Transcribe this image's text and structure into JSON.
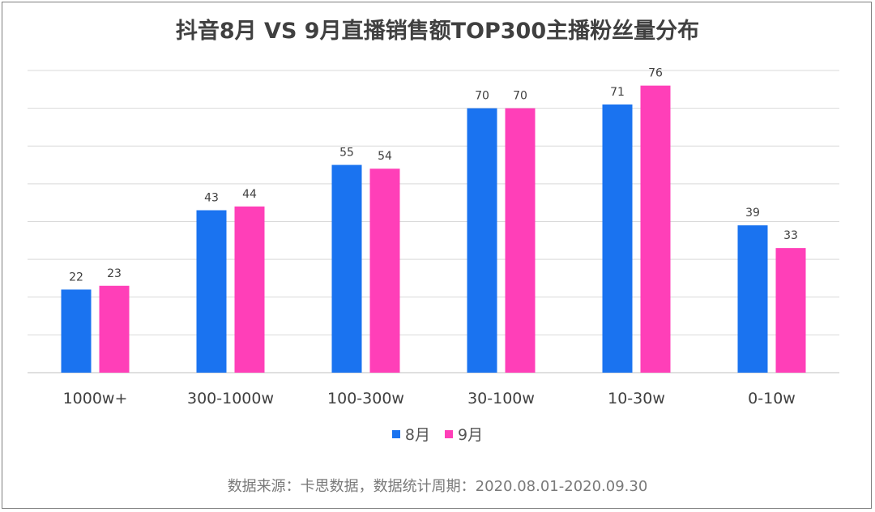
{
  "chart_data": {
    "type": "bar",
    "title": "抖音8月 VS 9月直播销售额TOP300主播粉丝量分布",
    "categories": [
      "1000w+",
      "300-1000w",
      "100-300w",
      "30-100w",
      "10-30w",
      "0-10w"
    ],
    "series": [
      {
        "name": "8月",
        "color": "#1a73f0",
        "values": [
          22,
          43,
          55,
          70,
          71,
          39
        ]
      },
      {
        "name": "9月",
        "color": "#ff3fb8",
        "values": [
          23,
          44,
          54,
          70,
          76,
          33
        ]
      }
    ],
    "ylim": [
      0,
      80
    ],
    "gridlines": true,
    "xlabel": "",
    "ylabel": "",
    "legend_position": "bottom"
  },
  "source_note": "数据来源：卡思数据，数据统计周期：2020.08.01-2020.09.30"
}
